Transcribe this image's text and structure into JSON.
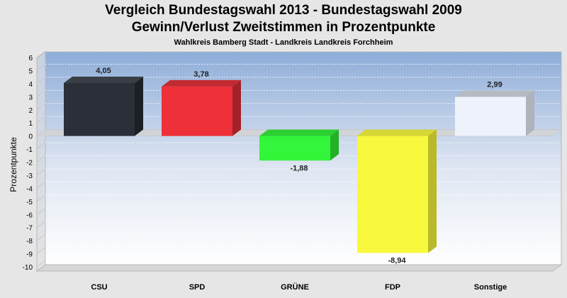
{
  "chart_data": {
    "type": "bar",
    "title": "Vergleich Bundestagswahl 2013 - Bundestagswahl 2009",
    "subtitle_line2": "Gewinn/Verlust Zweitstimmen in Prozentpunkte",
    "subtitle": "Wahlkreis Bamberg Stadt - Landkreis Landkreis Forchheim",
    "ylabel": "Prozentpunkte",
    "xlabel": "",
    "ylim": [
      -10,
      6
    ],
    "yticks": [
      "6",
      "5",
      "4",
      "3",
      "2",
      "1",
      "0",
      "-1",
      "-2",
      "-3",
      "-4",
      "-5",
      "-6",
      "-7",
      "-8",
      "-9",
      "-10"
    ],
    "grid": true,
    "categories": [
      "CSU",
      "SPD",
      "GRÜNE",
      "FDP",
      "Sonstige"
    ],
    "values": [
      4.05,
      3.78,
      -1.88,
      -8.94,
      2.99
    ],
    "value_labels": [
      "4,05",
      "3,78",
      "-1,88",
      "-8,94",
      "2,99"
    ],
    "colors": [
      "#2b2f37",
      "#ee3039",
      "#33f53a",
      "#f8f83c",
      "#eef2fa"
    ],
    "side_colors": [
      "#1c1f25",
      "#a32228",
      "#23b027",
      "#b9b92a",
      "#aeb3bc"
    ],
    "top_colors": [
      "#3a3e46",
      "#c22a30",
      "#2bcf31",
      "#d6d634",
      "#b5bac3"
    ]
  }
}
